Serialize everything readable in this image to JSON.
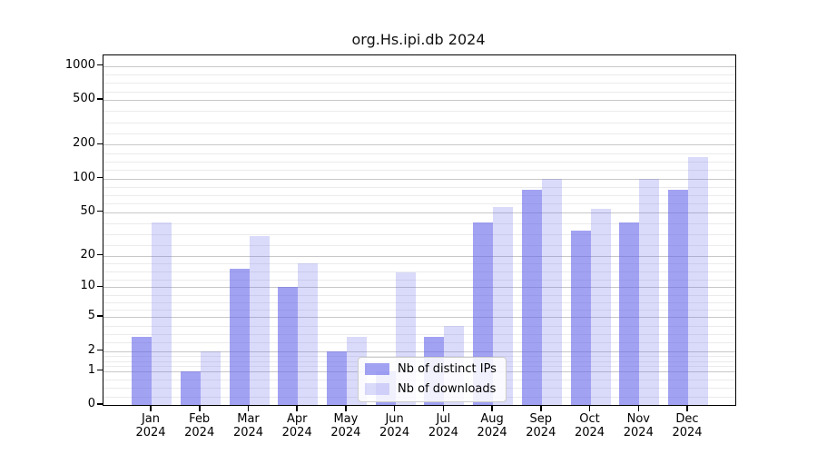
{
  "title": "org.Hs.ipi.db 2024",
  "chart_data": {
    "type": "bar",
    "title": "org.Hs.ipi.db 2024",
    "categories": [
      "Jan 2024",
      "Feb 2024",
      "Mar 2024",
      "Apr 2024",
      "May 2024",
      "Jun 2024",
      "Jul 2024",
      "Aug 2024",
      "Sep 2024",
      "Oct 2024",
      "Nov 2024",
      "Dec 2024"
    ],
    "series": [
      {
        "name": "Nb of distinct IPs",
        "values": [
          3,
          1,
          15,
          10,
          2,
          1,
          3,
          40,
          80,
          34,
          40,
          80
        ]
      },
      {
        "name": "Nb of downloads",
        "values": [
          40,
          2,
          30,
          17,
          3,
          14,
          4,
          55,
          100,
          53,
          100,
          155
        ]
      }
    ],
    "xlabel": "",
    "ylabel": "",
    "yscale": "log1p",
    "ylim": [
      0,
      1240
    ],
    "y_ticks": [
      0,
      1,
      2,
      5,
      10,
      20,
      50,
      100,
      200,
      500,
      1000
    ],
    "y_minor_per_gap": 3,
    "grid": true,
    "legend_position": "inside-bottom-center"
  },
  "legend": {
    "items": [
      {
        "label": "Nb of distinct IPs"
      },
      {
        "label": "Nb of downloads"
      }
    ]
  },
  "colors": {
    "bar_distinct_ips": "rgba(100,100,235,0.60)",
    "bar_downloads": "rgba(100,100,235,0.24)",
    "grid_major": "#c8c8c8",
    "grid_minor": "#ebebeb",
    "frame": "#000000",
    "text": "#000000",
    "legend_border": "#cccccc",
    "legend_bg": "rgba(255,255,255,0.85)"
  }
}
